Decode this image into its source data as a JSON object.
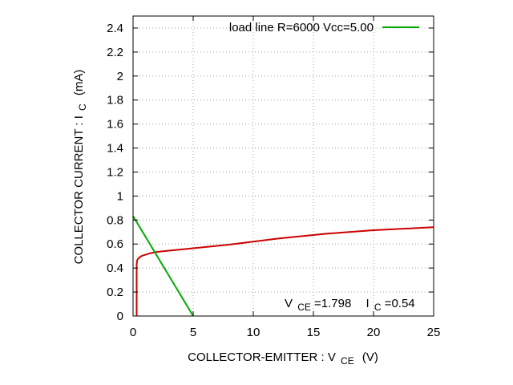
{
  "chart_data": {
    "type": "line",
    "xlabel": {
      "main": "COLLECTOR-EMITTER : V",
      "sub": "CE",
      "unit": "(V)"
    },
    "ylabel": {
      "main": "COLLECTOR CURRENT : I",
      "sub": "C",
      "unit": "(mA)"
    },
    "xlim": [
      0,
      25
    ],
    "ylim": [
      0,
      2.5
    ],
    "x_ticks": [
      0,
      5,
      10,
      15,
      20,
      25
    ],
    "y_ticks": [
      0,
      0.2,
      0.4,
      0.6,
      0.8,
      1,
      1.2,
      1.4,
      1.6,
      1.8,
      2,
      2.2,
      2.4
    ],
    "x_tick_labels": [
      "0",
      "5",
      "10",
      "15",
      "20",
      "25"
    ],
    "y_tick_labels": [
      "0",
      "0.2",
      "0.4",
      "0.6",
      "0.8",
      "1",
      "1.2",
      "1.4",
      "1.6",
      "1.8",
      "2",
      "2.2",
      "2.4"
    ],
    "grid": true,
    "legend_position": "top-right",
    "series": [
      {
        "color": "#cc0000",
        "x": [
          0.3,
          0.3,
          0.3,
          0.3,
          0.32,
          0.35,
          0.4,
          0.5,
          0.7,
          1.0,
          1.5,
          2,
          3,
          4,
          5,
          6,
          7,
          8,
          10,
          12,
          14,
          16,
          18,
          20,
          22,
          24,
          25
        ],
        "y": [
          0.0,
          0.1,
          0.3,
          0.43,
          0.45,
          0.465,
          0.475,
          0.485,
          0.5,
          0.51,
          0.525,
          0.535,
          0.545,
          0.555,
          0.565,
          0.575,
          0.585,
          0.595,
          0.62,
          0.645,
          0.665,
          0.685,
          0.7,
          0.715,
          0.725,
          0.735,
          0.74
        ]
      },
      {
        "name": "load line  R=6000 Vcc=5.00",
        "color": "#00aa00",
        "x": [
          0,
          5
        ],
        "y": [
          0.8333,
          0
        ]
      }
    ],
    "annotation": {
      "vce_prefix": "V",
      "vce_sub": "CE",
      "vce_value": "=1.798",
      "ic_prefix": "I",
      "ic_sub": "C",
      "ic_value": "=0.54"
    }
  }
}
